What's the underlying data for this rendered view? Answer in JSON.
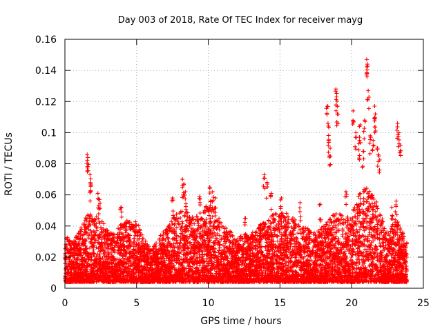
{
  "chart_data": {
    "type": "scatter",
    "marker": "plus",
    "title": "Day 003 of 2018, Rate Of TEC Index for receiver mayg",
    "xlabel": "GPS time / hours",
    "ylabel": "ROTI / TECUs",
    "xlim": [
      0,
      25
    ],
    "ylim": [
      0,
      0.16
    ],
    "xticks": [
      0,
      5,
      10,
      15,
      20,
      25
    ],
    "yticks": [
      0,
      0.02,
      0.04,
      0.06,
      0.08,
      0.1,
      0.12,
      0.14,
      0.16
    ],
    "xtick_labels": [
      "0",
      "5",
      "10",
      "15",
      "20",
      "25"
    ],
    "ytick_labels": [
      "0",
      "0.02",
      "0.04",
      "0.06",
      "0.08",
      "0.1",
      "0.12",
      "0.14",
      "0.16"
    ],
    "grid": true,
    "series_color": "#ff0000",
    "series": [
      {
        "name": "ROTI",
        "envelope": [
          {
            "x": 0.0,
            "y": 0.034
          },
          {
            "x": 0.5,
            "y": 0.03
          },
          {
            "x": 1.0,
            "y": 0.036
          },
          {
            "x": 1.5,
            "y": 0.05
          },
          {
            "x": 2.0,
            "y": 0.047
          },
          {
            "x": 2.5,
            "y": 0.045
          },
          {
            "x": 3.0,
            "y": 0.037
          },
          {
            "x": 3.5,
            "y": 0.035
          },
          {
            "x": 4.0,
            "y": 0.043
          },
          {
            "x": 4.5,
            "y": 0.044
          },
          {
            "x": 5.0,
            "y": 0.044
          },
          {
            "x": 5.5,
            "y": 0.032
          },
          {
            "x": 6.0,
            "y": 0.025
          },
          {
            "x": 6.5,
            "y": 0.032
          },
          {
            "x": 7.0,
            "y": 0.038
          },
          {
            "x": 7.5,
            "y": 0.045
          },
          {
            "x": 8.0,
            "y": 0.05
          },
          {
            "x": 8.5,
            "y": 0.05
          },
          {
            "x": 9.0,
            "y": 0.045
          },
          {
            "x": 9.5,
            "y": 0.05
          },
          {
            "x": 10.0,
            "y": 0.055
          },
          {
            "x": 10.5,
            "y": 0.05
          },
          {
            "x": 11.0,
            "y": 0.042
          },
          {
            "x": 11.5,
            "y": 0.037
          },
          {
            "x": 12.0,
            "y": 0.032
          },
          {
            "x": 12.5,
            "y": 0.035
          },
          {
            "x": 13.0,
            "y": 0.035
          },
          {
            "x": 13.5,
            "y": 0.04
          },
          {
            "x": 14.0,
            "y": 0.045
          },
          {
            "x": 14.5,
            "y": 0.048
          },
          {
            "x": 15.0,
            "y": 0.05
          },
          {
            "x": 15.5,
            "y": 0.048
          },
          {
            "x": 16.0,
            "y": 0.045
          },
          {
            "x": 16.5,
            "y": 0.04
          },
          {
            "x": 17.0,
            "y": 0.038
          },
          {
            "x": 17.5,
            "y": 0.035
          },
          {
            "x": 18.0,
            "y": 0.04
          },
          {
            "x": 18.5,
            "y": 0.045
          },
          {
            "x": 19.0,
            "y": 0.05
          },
          {
            "x": 19.5,
            "y": 0.045
          },
          {
            "x": 20.0,
            "y": 0.048
          },
          {
            "x": 20.5,
            "y": 0.06
          },
          {
            "x": 21.0,
            "y": 0.065
          },
          {
            "x": 21.5,
            "y": 0.06
          },
          {
            "x": 22.0,
            "y": 0.05
          },
          {
            "x": 22.5,
            "y": 0.035
          },
          {
            "x": 23.0,
            "y": 0.045
          },
          {
            "x": 23.5,
            "y": 0.04
          },
          {
            "x": 23.8,
            "y": 0.03
          }
        ],
        "peaks": [
          {
            "x": 1.55,
            "y": 0.086
          },
          {
            "x": 1.6,
            "y": 0.084
          },
          {
            "x": 1.75,
            "y": 0.073
          },
          {
            "x": 1.8,
            "y": 0.067
          },
          {
            "x": 2.3,
            "y": 0.061
          },
          {
            "x": 2.4,
            "y": 0.057
          },
          {
            "x": 3.9,
            "y": 0.052
          },
          {
            "x": 7.5,
            "y": 0.058
          },
          {
            "x": 8.2,
            "y": 0.07
          },
          {
            "x": 8.3,
            "y": 0.067
          },
          {
            "x": 8.4,
            "y": 0.062
          },
          {
            "x": 9.4,
            "y": 0.059
          },
          {
            "x": 10.1,
            "y": 0.065
          },
          {
            "x": 10.3,
            "y": 0.062
          },
          {
            "x": 10.5,
            "y": 0.058
          },
          {
            "x": 12.6,
            "y": 0.045
          },
          {
            "x": 13.9,
            "y": 0.073
          },
          {
            "x": 14.1,
            "y": 0.068
          },
          {
            "x": 14.4,
            "y": 0.061
          },
          {
            "x": 15.1,
            "y": 0.058
          },
          {
            "x": 18.3,
            "y": 0.117
          },
          {
            "x": 18.35,
            "y": 0.106
          },
          {
            "x": 18.4,
            "y": 0.095
          },
          {
            "x": 18.9,
            "y": 0.128
          },
          {
            "x": 18.95,
            "y": 0.123
          },
          {
            "x": 19.0,
            "y": 0.112
          },
          {
            "x": 18.5,
            "y": 0.09
          },
          {
            "x": 20.1,
            "y": 0.114
          },
          {
            "x": 20.3,
            "y": 0.1
          },
          {
            "x": 20.6,
            "y": 0.105
          },
          {
            "x": 20.9,
            "y": 0.108
          },
          {
            "x": 21.05,
            "y": 0.147
          },
          {
            "x": 21.1,
            "y": 0.144
          },
          {
            "x": 21.15,
            "y": 0.127
          },
          {
            "x": 21.3,
            "y": 0.098
          },
          {
            "x": 21.6,
            "y": 0.117
          },
          {
            "x": 21.65,
            "y": 0.112
          },
          {
            "x": 21.5,
            "y": 0.095
          },
          {
            "x": 21.9,
            "y": 0.085
          },
          {
            "x": 23.2,
            "y": 0.106
          },
          {
            "x": 23.3,
            "y": 0.1
          },
          {
            "x": 23.4,
            "y": 0.092
          },
          {
            "x": 23.1,
            "y": 0.056
          },
          {
            "x": 22.8,
            "y": 0.052
          },
          {
            "x": 19.6,
            "y": 0.062
          },
          {
            "x": 20.5,
            "y": 0.093
          },
          {
            "x": 20.8,
            "y": 0.088
          },
          {
            "x": 21.8,
            "y": 0.09
          },
          {
            "x": 17.8,
            "y": 0.054
          },
          {
            "x": 16.4,
            "y": 0.055
          }
        ]
      }
    ]
  }
}
